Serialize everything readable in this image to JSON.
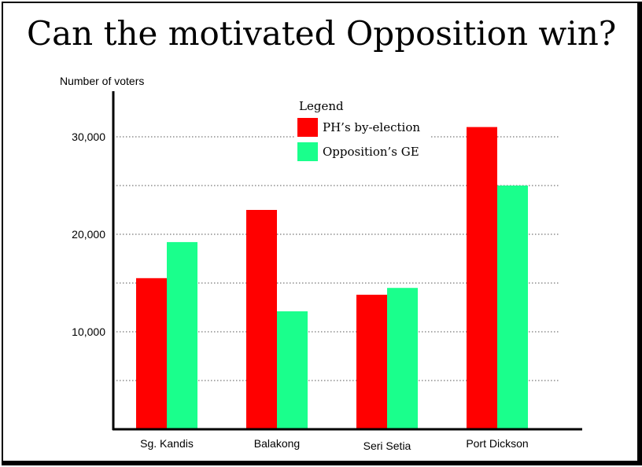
{
  "chart_data": {
    "type": "bar",
    "title": "Can the motivated Opposition win?",
    "ylabel": "Number of voters",
    "xlabel": "",
    "categories": [
      "Sg. Kandis",
      "Balakong",
      "Seri Setia",
      "Port Dickson"
    ],
    "series": [
      {
        "name": "PH’s by-election",
        "color": "#ff0000",
        "values": [
          15500,
          22500,
          13800,
          31000
        ]
      },
      {
        "name": "Opposition’s GE",
        "color": "#1aff8c",
        "values": [
          19200,
          12100,
          14500,
          25000
        ]
      }
    ],
    "yticks": [
      10000,
      20000,
      30000
    ],
    "ytick_labels": [
      "10,000",
      "20,000",
      "30,000"
    ],
    "gridlines": [
      5000,
      10000,
      15000,
      20000,
      25000,
      30000
    ],
    "ylim": [
      0,
      35000
    ],
    "grid": true,
    "grid_style": "dotted",
    "legend": {
      "title": "Legend",
      "placement": "top-center"
    }
  }
}
